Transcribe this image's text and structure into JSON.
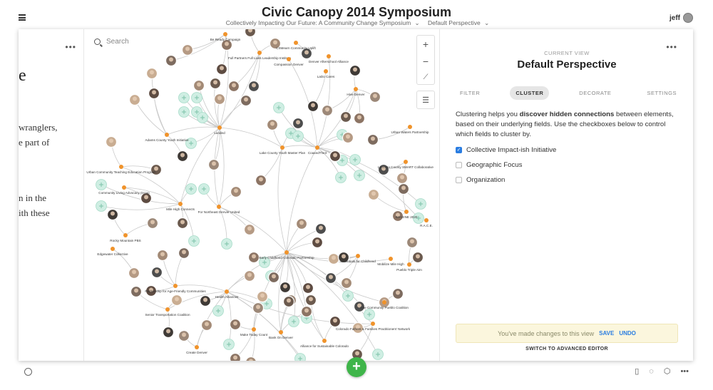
{
  "header": {
    "title": "Civic Canopy 2014 Symposium",
    "project": "Collectively Impacting Our Future: A Community Change Symposium",
    "view": "Default Perspective",
    "user": "jeff"
  },
  "left_panel": {
    "heading_fragment": "e",
    "text_lines": [
      "wranglers,",
      "e part of",
      "n in the",
      "ith these"
    ]
  },
  "graph": {
    "search_placeholder": "Search",
    "zoom_in": "+",
    "zoom_out": "−",
    "node_labels": [
      "Be Ready Campaign",
      "CSMearn Community Uplift",
      "Full Partners Full Lives Leadership Institute",
      "Compassion Denver",
      "Denver Afterschool Alliance",
      "LaDo Cares",
      "Hive Denver",
      "Landed",
      "Lake County Youth Master Plan",
      "CoaxedThe3",
      "Urban Waters Partnership",
      "Adams County Youth Initiative",
      "Urban Community Teaching Education Program",
      "La Plata County SMART Collaborative",
      "Community Living Advocacy Group",
      "Mile High Connects",
      "For Northeast Denver United",
      "IMAGINE 2020",
      "R.A.C.E.",
      "Rocky Mountain PBS",
      "Edgewater Collective",
      "Early Childhood Colorado Partnership",
      "Essentials for Childhood",
      "Mobilize Mile High",
      "Pueblo Triple Aim",
      "Partnership for Age-Friendly Communities",
      "Health Alliances",
      "Senior Transportation Coalition",
      "One Community Pueblo Coalition",
      "Colorado Fathers & Families Practitioners' Network",
      "Make Today Count",
      "Bank On Denver",
      "Alliance for Sustainable Colorado",
      "Create Denver"
    ]
  },
  "right_panel": {
    "current_view_label": "CURRENT VIEW",
    "title": "Default Perspective",
    "tabs": [
      "FILTER",
      "CLUSTER",
      "DECORATE",
      "SETTINGS"
    ],
    "desc_1": "Clustering helps you ",
    "desc_bold": "discover hidden connections",
    "desc_2": " between elements, based on their underlying fields. Use the checkboxes below to control which fields to cluster by.",
    "options": [
      {
        "label": "Collective Impact-ish Initiative",
        "checked": true
      },
      {
        "label": "Geographic Focus",
        "checked": false
      },
      {
        "label": "Organization",
        "checked": false
      }
    ],
    "changes_text": "You've made changes to this view",
    "save": "SAVE",
    "undo": "UNDO",
    "advanced": "SWITCH TO ADVANCED EDITOR"
  },
  "colors": {
    "accent": "#2a7de1",
    "node_orange": "#f0932b",
    "add_green": "#3fb54a",
    "cluster_node": "#cfeee3"
  }
}
